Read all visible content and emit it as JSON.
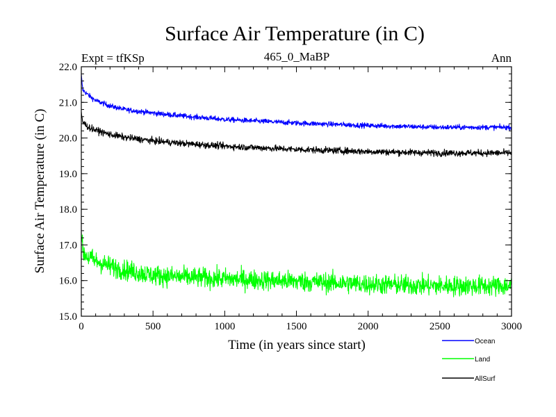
{
  "chart_data": {
    "type": "line",
    "title": "Surface Air Temperature (in C)",
    "subtitle_left": "Expt = tfKSp",
    "subtitle_center": "465_0_MaBP",
    "subtitle_right": "Ann",
    "xlabel": "Time (in years since start)",
    "ylabel": "Surface Air Temperature (in C)",
    "xlim": [
      0,
      3000
    ],
    "ylim": [
      15.0,
      22.0
    ],
    "x_ticks": [
      0,
      500,
      1000,
      1500,
      2000,
      2500,
      3000
    ],
    "y_ticks": [
      "15.0",
      "16.0",
      "17.0",
      "18.0",
      "19.0",
      "20.0",
      "21.0",
      "22.0"
    ],
    "series": [
      {
        "name": "Ocean",
        "color": "#0000ff",
        "noise": 0.07,
        "x": [
          0,
          10,
          50,
          100,
          200,
          300,
          500,
          700,
          1000,
          1500,
          2000,
          2500,
          3000
        ],
        "values": [
          21.75,
          21.35,
          21.2,
          21.05,
          20.9,
          20.8,
          20.7,
          20.62,
          20.52,
          20.42,
          20.35,
          20.3,
          20.3
        ]
      },
      {
        "name": "Land",
        "color": "#00ff00",
        "noise": 0.28,
        "x": [
          0,
          10,
          50,
          100,
          200,
          300,
          500,
          700,
          1000,
          1500,
          2000,
          2500,
          3000
        ],
        "values": [
          17.5,
          16.8,
          16.65,
          16.55,
          16.4,
          16.3,
          16.15,
          16.1,
          16.05,
          15.98,
          15.9,
          15.85,
          15.85
        ]
      },
      {
        "name": "AllSurf",
        "color": "#000000",
        "noise": 0.09,
        "x": [
          0,
          10,
          50,
          100,
          200,
          300,
          500,
          700,
          1000,
          1500,
          2000,
          2500,
          3000
        ],
        "values": [
          20.7,
          20.45,
          20.3,
          20.22,
          20.1,
          20.02,
          19.92,
          19.85,
          19.77,
          19.68,
          19.62,
          19.58,
          19.58
        ]
      }
    ]
  }
}
